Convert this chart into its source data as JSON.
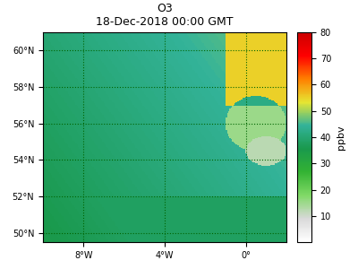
{
  "title": "O3",
  "subtitle": "18-Dec-2018 00:00 GMT",
  "colorbar_label": "ppbv",
  "colorbar_ticks": [
    10,
    20,
    30,
    40,
    50,
    60,
    70,
    80
  ],
  "vmin": 0,
  "vmax": 80,
  "lon_min": -10.0,
  "lon_max": 2.0,
  "lat_min": 49.5,
  "lat_max": 61.0,
  "xticks": [
    -8,
    -4,
    0
  ],
  "yticks": [
    50,
    52,
    54,
    56,
    58,
    60
  ],
  "xlabel_format": "{val}°W",
  "background_color": "#ffffff",
  "colormap": "custom_o3"
}
